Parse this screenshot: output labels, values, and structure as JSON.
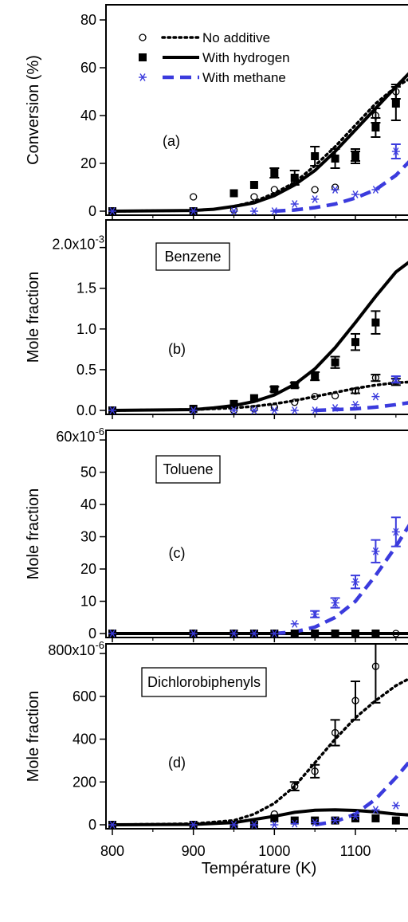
{
  "chart_data": [
    {
      "panel_label": "(a)",
      "boxed_label": "",
      "type": "scatter",
      "ylabel": "Conversion (%)",
      "ylim": [
        0,
        85
      ],
      "ytick_labels": [
        {
          "value": 0,
          "label": "0"
        },
        {
          "value": 20,
          "label": "20"
        },
        {
          "value": 40,
          "label": "40"
        },
        {
          "value": 60,
          "label": "60"
        },
        {
          "value": 80,
          "label": "80"
        }
      ],
      "legend": {
        "placement": "top-left",
        "entries": [
          {
            "name": "No additive",
            "marker": "open-circle",
            "line": "dotted",
            "color": "#000000"
          },
          {
            "name": "With hydrogen",
            "marker": "filled-square",
            "line": "solid",
            "color": "#000000"
          },
          {
            "name": "With methane",
            "marker": "asterisk",
            "line": "dashed",
            "color": "#3b3bdd"
          }
        ]
      },
      "series": [
        {
          "name": "No additive",
          "marker": "open-circle",
          "color": "#000000",
          "x": [
            800,
            900,
            950,
            975,
            1000,
            1025,
            1050,
            1075,
            1100,
            1125,
            1150
          ],
          "y": [
            0,
            6,
            0.5,
            6,
            9,
            12,
            9,
            10,
            23,
            40,
            50
          ],
          "err": [
            0,
            1,
            0,
            1,
            1,
            1,
            1,
            1,
            2,
            3,
            3
          ]
        },
        {
          "name": "With hydrogen",
          "marker": "filled-square",
          "color": "#000000",
          "x": [
            800,
            900,
            950,
            975,
            1000,
            1025,
            1050,
            1075,
            1100,
            1125,
            1150
          ],
          "y": [
            0,
            0,
            7.5,
            11,
            16,
            14,
            23,
            22,
            23,
            35,
            45
          ],
          "err": [
            0,
            0,
            0.5,
            1,
            2,
            3,
            4,
            4,
            3,
            4,
            7
          ]
        },
        {
          "name": "With methane",
          "marker": "asterisk",
          "color": "#3b3bdd",
          "x": [
            800,
            900,
            950,
            975,
            1000,
            1025,
            1050,
            1075,
            1100,
            1125,
            1150
          ],
          "y": [
            0,
            0,
            0,
            0,
            0,
            3,
            5,
            9,
            7,
            9,
            25
          ],
          "err": [
            0,
            0,
            0,
            0,
            0,
            0.5,
            1,
            1,
            1,
            1,
            3
          ]
        }
      ],
      "curves": [
        {
          "name": "No additive",
          "style": "dotted",
          "color": "#000000",
          "x": [
            800,
            900,
            925,
            950,
            975,
            1000,
            1025,
            1050,
            1075,
            1100,
            1125,
            1150,
            1170
          ],
          "y": [
            0,
            0.3,
            0.8,
            2,
            4,
            7.5,
            12,
            19,
            27,
            36,
            45,
            52,
            56
          ]
        },
        {
          "name": "With hydrogen",
          "style": "solid",
          "color": "#000000",
          "x": [
            800,
            900,
            925,
            950,
            975,
            1000,
            1025,
            1050,
            1075,
            1100,
            1125,
            1150,
            1170
          ],
          "y": [
            0,
            0.3,
            0.8,
            2,
            3.5,
            6.5,
            11,
            17,
            25,
            34,
            43,
            52,
            59
          ]
        },
        {
          "name": "With methane",
          "style": "dashed",
          "color": "#3b3bdd",
          "x": [
            1000,
            1025,
            1050,
            1075,
            1100,
            1125,
            1150,
            1170
          ],
          "y": [
            0,
            0.5,
            1.5,
            3,
            5.5,
            9,
            15,
            22
          ]
        }
      ]
    },
    {
      "panel_label": "(b)",
      "boxed_label": "Benzene",
      "type": "scatter",
      "ylabel": "Mole fraction",
      "ylim": [
        0,
        0.0023
      ],
      "ytick_labels": [
        {
          "value": 0,
          "label": "0.0"
        },
        {
          "value": 0.0005,
          "label": "0.5"
        },
        {
          "value": 0.001,
          "label": "1.0"
        },
        {
          "value": 0.0015,
          "label": "1.5"
        },
        {
          "value": 0.002,
          "label": "2.0x10",
          "exponent": "-3"
        }
      ],
      "series": [
        {
          "name": "No additive",
          "marker": "open-circle",
          "color": "#000000",
          "x": [
            800,
            900,
            950,
            975,
            1000,
            1025,
            1050,
            1075,
            1100,
            1125,
            1150
          ],
          "y": [
            0,
            0,
            0,
            2e-05,
            4e-05,
            0.0001,
            0.00017,
            0.00018,
            0.00024,
            0.0004,
            0.00035
          ],
          "err": [
            0,
            0,
            0,
            1e-05,
            1e-05,
            2e-05,
            2e-05,
            2e-05,
            3e-05,
            4e-05,
            4e-05
          ]
        },
        {
          "name": "With hydrogen",
          "marker": "filled-square",
          "color": "#000000",
          "x": [
            800,
            900,
            950,
            975,
            1000,
            1025,
            1050,
            1075,
            1100,
            1125
          ],
          "y": [
            0,
            2e-05,
            8e-05,
            0.00015,
            0.00026,
            0.00031,
            0.00042,
            0.00059,
            0.00084,
            0.00108
          ],
          "err": [
            0,
            1e-05,
            2e-05,
            2e-05,
            3e-05,
            3e-05,
            5e-05,
            7e-05,
            0.0001,
            0.00014
          ]
        },
        {
          "name": "With methane",
          "marker": "asterisk",
          "color": "#3b3bdd",
          "x": [
            800,
            900,
            950,
            975,
            1000,
            1025,
            1050,
            1075,
            1100,
            1125,
            1150
          ],
          "y": [
            0,
            0,
            0,
            0,
            0,
            0,
            0,
            3e-05,
            7e-05,
            0.00017,
            0.00038
          ],
          "err": [
            0,
            0,
            0,
            0,
            0,
            0,
            0,
            1e-05,
            1e-05,
            2e-05,
            4e-05
          ]
        }
      ],
      "curves": [
        {
          "name": "No additive",
          "style": "dotted",
          "color": "#000000",
          "x": [
            800,
            900,
            950,
            975,
            1000,
            1025,
            1050,
            1075,
            1100,
            1125,
            1150,
            1170
          ],
          "y": [
            0,
            1e-05,
            3e-05,
            5e-05,
            8e-05,
            0.00012,
            0.00017,
            0.00022,
            0.00027,
            0.00031,
            0.00034,
            0.00035
          ]
        },
        {
          "name": "With hydrogen",
          "style": "solid",
          "color": "#000000",
          "x": [
            800,
            900,
            925,
            950,
            975,
            1000,
            1025,
            1050,
            1075,
            1100,
            1125,
            1150,
            1170
          ],
          "y": [
            0,
            1e-05,
            3e-05,
            6e-05,
            0.00011,
            0.00019,
            0.00032,
            0.00051,
            0.00077,
            0.00108,
            0.0014,
            0.0017,
            0.00185
          ]
        },
        {
          "name": "With methane",
          "style": "dashed",
          "color": "#3b3bdd",
          "x": [
            1050,
            1075,
            1100,
            1125,
            1150,
            1170
          ],
          "y": [
            0,
            1e-05,
            2e-05,
            4e-05,
            7e-05,
            0.0001
          ]
        }
      ]
    },
    {
      "panel_label": "(c)",
      "boxed_label": "Toluene",
      "type": "scatter",
      "ylabel": "Mole fraction",
      "ylim": [
        0,
        6.2e-05
      ],
      "ytick_labels": [
        {
          "value": 0,
          "label": "0"
        },
        {
          "value": 1e-05,
          "label": "10"
        },
        {
          "value": 2e-05,
          "label": "20"
        },
        {
          "value": 3e-05,
          "label": "30"
        },
        {
          "value": 4e-05,
          "label": "40"
        },
        {
          "value": 5e-05,
          "label": "50"
        },
        {
          "value": 6e-05,
          "label": "60x10",
          "exponent": "-6"
        }
      ],
      "series": [
        {
          "name": "No additive",
          "marker": "open-circle",
          "color": "#000000",
          "x": [
            800,
            900,
            950,
            975,
            1000,
            1025,
            1050,
            1075,
            1100,
            1125,
            1150
          ],
          "y": [
            0,
            0,
            0,
            0,
            0,
            0,
            0,
            0,
            0,
            0,
            0
          ],
          "err": [
            0,
            0,
            0,
            0,
            0,
            0,
            0,
            0,
            0,
            0,
            0
          ]
        },
        {
          "name": "With hydrogen",
          "marker": "filled-square",
          "color": "#000000",
          "x": [
            800,
            900,
            950,
            975,
            1000,
            1025,
            1050,
            1075,
            1100,
            1125
          ],
          "y": [
            0,
            0,
            0,
            0,
            0,
            0,
            0,
            0,
            0,
            0
          ],
          "err": [
            0,
            0,
            0,
            0,
            0,
            0,
            0,
            0,
            0,
            0
          ]
        },
        {
          "name": "With methane",
          "marker": "asterisk",
          "color": "#3b3bdd",
          "x": [
            800,
            900,
            950,
            975,
            1000,
            1025,
            1050,
            1075,
            1100,
            1125,
            1150
          ],
          "y": [
            0,
            0,
            0,
            0,
            0,
            3e-06,
            6e-06,
            9.5e-06,
            1.6e-05,
            2.55e-05,
            3.15e-05
          ],
          "err": [
            0,
            0,
            0,
            0,
            0,
            5e-07,
            1e-06,
            1.5e-06,
            2e-06,
            3.5e-06,
            4.5e-06
          ]
        }
      ],
      "curves": [
        {
          "name": "No additive",
          "style": "dotted",
          "color": "#000000",
          "x": [
            800,
            1170
          ],
          "y": [
            0,
            0
          ]
        },
        {
          "name": "With hydrogen",
          "style": "solid",
          "color": "#000000",
          "x": [
            800,
            1170
          ],
          "y": [
            0,
            0
          ]
        },
        {
          "name": "With methane",
          "style": "dashed",
          "color": "#3b3bdd",
          "x": [
            1000,
            1025,
            1050,
            1075,
            1100,
            1125,
            1150,
            1170
          ],
          "y": [
            0,
            5e-07,
            2e-06,
            5e-06,
            1e-05,
            1.8e-05,
            2.7e-05,
            3.5e-05
          ]
        }
      ]
    },
    {
      "panel_label": "(d)",
      "boxed_label": "Dichlorobiphenyls",
      "type": "scatter",
      "ylabel": "Mole fraction",
      "ylim": [
        0,
        0.00083
      ],
      "ytick_labels": [
        {
          "value": 0,
          "label": "0"
        },
        {
          "value": 0.0002,
          "label": "200"
        },
        {
          "value": 0.0004,
          "label": "400"
        },
        {
          "value": 0.0006,
          "label": "600"
        },
        {
          "value": 0.0008,
          "label": "800x10",
          "exponent": "-6"
        }
      ],
      "xlabel": "Température (K)",
      "xlim": [
        785,
        1170
      ],
      "xtick_labels": [
        {
          "value": 800,
          "label": "800"
        },
        {
          "value": 900,
          "label": "900"
        },
        {
          "value": 1000,
          "label": "1000"
        },
        {
          "value": 1100,
          "label": "1100"
        }
      ],
      "series": [
        {
          "name": "No additive",
          "marker": "open-circle",
          "color": "#000000",
          "x": [
            800,
            900,
            950,
            975,
            1000,
            1025,
            1050,
            1075,
            1100,
            1125
          ],
          "y": [
            0,
            0,
            0,
            0,
            5e-05,
            0.00018,
            0.00025,
            0.00043,
            0.00058,
            0.00074
          ],
          "err": [
            0,
            0,
            0,
            0,
            1e-05,
            2e-05,
            3e-05,
            6e-05,
            9e-05,
            0.00017
          ]
        },
        {
          "name": "With hydrogen",
          "marker": "filled-square",
          "color": "#000000",
          "x": [
            800,
            900,
            950,
            975,
            1000,
            1025,
            1050,
            1075,
            1100,
            1125,
            1150
          ],
          "y": [
            0,
            0,
            0,
            0,
            3e-05,
            2e-05,
            2e-05,
            2e-05,
            3e-05,
            3e-05,
            2e-05
          ],
          "err": [
            0,
            0,
            0,
            0,
            5e-06,
            5e-06,
            5e-06,
            5e-06,
            5e-06,
            5e-06,
            5e-06
          ]
        },
        {
          "name": "With methane",
          "marker": "asterisk",
          "color": "#3b3bdd",
          "x": [
            800,
            900,
            950,
            975,
            1000,
            1025,
            1050,
            1075,
            1100,
            1125,
            1150
          ],
          "y": [
            0,
            0,
            0,
            0,
            0,
            5e-06,
            1e-05,
            2e-05,
            4e-05,
            7e-05,
            9e-05
          ],
          "err": [
            0,
            0,
            0,
            0,
            0,
            2e-06,
            3e-06,
            4e-06,
            6e-06,
            1e-05,
            1e-05
          ]
        }
      ],
      "curves": [
        {
          "name": "No additive",
          "style": "dotted",
          "color": "#000000",
          "x": [
            800,
            900,
            950,
            975,
            1000,
            1025,
            1050,
            1075,
            1100,
            1125,
            1150,
            1170
          ],
          "y": [
            0,
            5e-06,
            2e-05,
            5e-05,
            0.0001,
            0.00018,
            0.00029,
            0.0004,
            0.0005,
            0.00058,
            0.00065,
            0.00069
          ]
        },
        {
          "name": "With hydrogen",
          "style": "solid",
          "color": "#000000",
          "x": [
            800,
            900,
            950,
            975,
            1000,
            1025,
            1050,
            1075,
            1100,
            1125,
            1150,
            1170
          ],
          "y": [
            0,
            2e-06,
            1e-05,
            2.5e-05,
            4e-05,
            5.8e-05,
            6.8e-05,
            7e-05,
            6.7e-05,
            6e-05,
            5e-05,
            4.5e-05
          ]
        },
        {
          "name": "With methane",
          "style": "dashed",
          "color": "#3b3bdd",
          "x": [
            1050,
            1075,
            1100,
            1125,
            1150,
            1170
          ],
          "y": [
            0,
            1.5e-05,
            5e-05,
            0.00012,
            0.00022,
            0.00031
          ]
        }
      ]
    }
  ]
}
